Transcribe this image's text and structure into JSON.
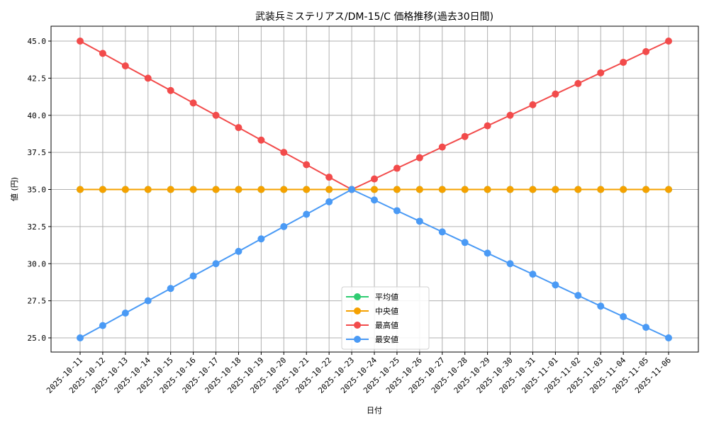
{
  "chart_data": {
    "type": "line",
    "title": "武装兵ミステリアス/DM-15/C 価格推移(過去30日間)",
    "xlabel": "日付",
    "ylabel": "値 (円)",
    "ylim": [
      24.0,
      46.0
    ],
    "yticks": [
      "25.0",
      "27.5",
      "30.0",
      "32.5",
      "35.0",
      "37.5",
      "40.0",
      "42.5",
      "45.0"
    ],
    "grid": true,
    "legend_position": "lower center",
    "x": [
      "2025-10-11",
      "2025-10-12",
      "2025-10-13",
      "2025-10-14",
      "2025-10-15",
      "2025-10-16",
      "2025-10-17",
      "2025-10-18",
      "2025-10-19",
      "2025-10-20",
      "2025-10-21",
      "2025-10-22",
      "2025-10-23",
      "2025-10-24",
      "2025-10-25",
      "2025-10-26",
      "2025-10-27",
      "2025-10-28",
      "2025-10-29",
      "2025-10-30",
      "2025-10-31",
      "2025-11-01",
      "2025-11-02",
      "2025-11-03",
      "2025-11-04",
      "2025-11-05",
      "2025-11-06"
    ],
    "series": [
      {
        "name": "平均値",
        "color": "#2ecc71",
        "values": [
          35,
          35,
          35,
          35,
          35,
          35,
          35,
          35,
          35,
          35,
          35,
          35,
          35,
          35,
          35,
          35,
          35,
          35,
          35,
          35,
          35,
          35,
          35,
          35,
          35,
          35,
          35
        ]
      },
      {
        "name": "中央値",
        "color": "#f5a100",
        "values": [
          35,
          35,
          35,
          35,
          35,
          35,
          35,
          35,
          35,
          35,
          35,
          35,
          35,
          35,
          35,
          35,
          35,
          35,
          35,
          35,
          35,
          35,
          35,
          35,
          35,
          35,
          35
        ]
      },
      {
        "name": "最高値",
        "color": "#f24b4b",
        "values": [
          45.0,
          44.17,
          43.33,
          42.5,
          41.67,
          40.83,
          40.0,
          39.17,
          38.33,
          37.5,
          36.67,
          35.83,
          35.0,
          35.71,
          36.43,
          37.14,
          37.86,
          38.57,
          39.29,
          40.0,
          40.71,
          41.43,
          42.14,
          42.86,
          43.57,
          44.29,
          45.0
        ]
      },
      {
        "name": "最安値",
        "color": "#4a9af5",
        "values": [
          25.0,
          25.83,
          26.67,
          27.5,
          28.33,
          29.17,
          30.0,
          30.83,
          31.67,
          32.5,
          33.33,
          34.17,
          35.0,
          34.29,
          33.57,
          32.86,
          32.14,
          31.43,
          30.71,
          30.0,
          29.29,
          28.57,
          27.86,
          27.14,
          26.43,
          25.71,
          25.0
        ]
      }
    ]
  }
}
